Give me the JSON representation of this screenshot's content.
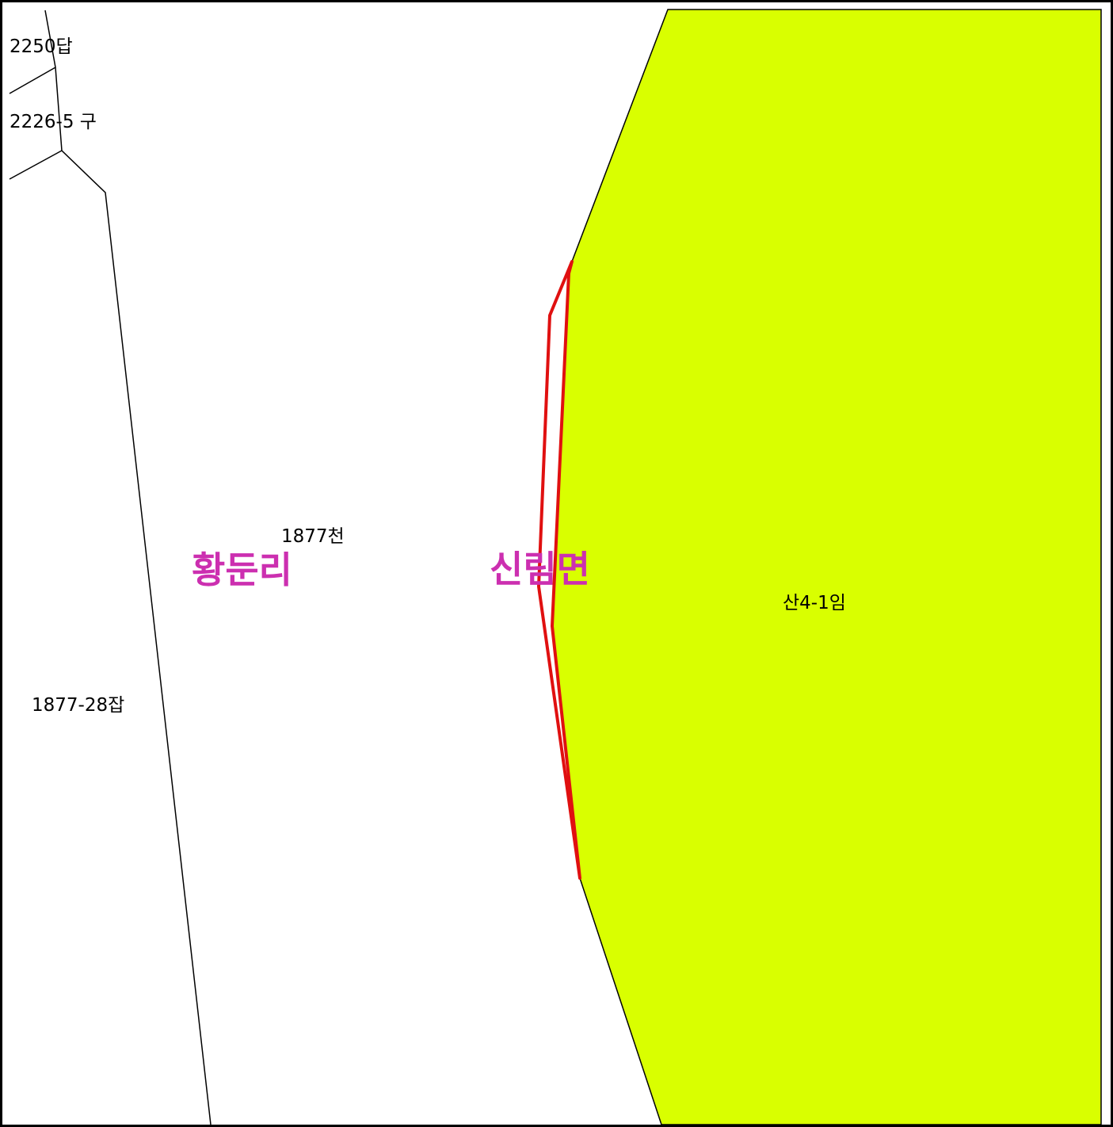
{
  "map": {
    "colors": {
      "forest_fill": "#d9ff00",
      "parcel_line": "#000000",
      "highlight": "#e01010",
      "region_label": "#cc2fb0",
      "frame": "#000000"
    },
    "parcels": {
      "p2250": "2250답",
      "p2226_5": "2226-5 구",
      "p1877": "1877천",
      "p1877_28": "1877-28잡",
      "san4_1": "산4-1임"
    },
    "regions": {
      "hwangdun": "황둔리",
      "sinrim": "신림면"
    }
  }
}
